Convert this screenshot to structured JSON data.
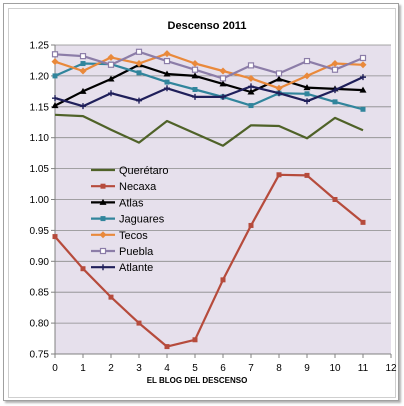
{
  "chart_data": {
    "type": "line",
    "title": "Descenso 2011",
    "xlabel": "EL BLOG DEL DESCENSO",
    "ylabel": "",
    "xlim": [
      0,
      12
    ],
    "ylim": [
      0.75,
      1.25
    ],
    "x_ticks": [
      0,
      1,
      2,
      3,
      4,
      5,
      6,
      7,
      8,
      9,
      10,
      11,
      12
    ],
    "y_ticks": [
      0.75,
      0.8,
      0.85,
      0.9,
      0.95,
      1.0,
      1.05,
      1.1,
      1.15,
      1.2,
      1.25
    ],
    "grid": true,
    "legend_position": "middle-left",
    "plot_background": "#e6e0ec",
    "x": [
      0,
      1,
      2,
      3,
      4,
      5,
      6,
      7,
      8,
      9,
      10,
      11
    ],
    "series": [
      {
        "name": "Querétaro",
        "color": "#4f6228",
        "marker": "none",
        "values": [
          1.137,
          1.135,
          1.113,
          1.092,
          1.127,
          1.107,
          1.087,
          1.12,
          1.119,
          1.099,
          1.132,
          1.112
        ]
      },
      {
        "name": "Necaxa",
        "color": "#b64b3c",
        "marker": "square",
        "values": [
          0.94,
          0.888,
          0.842,
          0.8,
          0.762,
          0.773,
          0.87,
          0.958,
          1.04,
          1.039,
          1.0,
          0.963
        ]
      },
      {
        "name": "Atlas",
        "color": "#000000",
        "marker": "triangle",
        "values": [
          1.152,
          1.175,
          1.195,
          1.218,
          1.203,
          1.2,
          1.187,
          1.174,
          1.195,
          1.181,
          1.179,
          1.177
        ]
      },
      {
        "name": "Jaguares",
        "color": "#31859c",
        "marker": "square",
        "values": [
          1.2,
          1.22,
          1.219,
          1.205,
          1.19,
          1.178,
          1.166,
          1.152,
          1.172,
          1.171,
          1.158,
          1.146
        ]
      },
      {
        "name": "Tecos",
        "color": "#e9893b",
        "marker": "diamond",
        "values": [
          1.223,
          1.208,
          1.23,
          1.22,
          1.236,
          1.22,
          1.208,
          1.196,
          1.18,
          1.2,
          1.22,
          1.218
        ]
      },
      {
        "name": "Puebla",
        "color": "#8c7da8",
        "marker": "square-open",
        "values": [
          1.235,
          1.232,
          1.218,
          1.239,
          1.224,
          1.21,
          1.196,
          1.217,
          1.204,
          1.224,
          1.21,
          1.229
        ]
      },
      {
        "name": "Atlante",
        "color": "#1f1f5a",
        "marker": "plus",
        "values": [
          1.164,
          1.151,
          1.172,
          1.16,
          1.18,
          1.166,
          1.166,
          1.183,
          1.172,
          1.159,
          1.177,
          1.198
        ]
      }
    ]
  }
}
